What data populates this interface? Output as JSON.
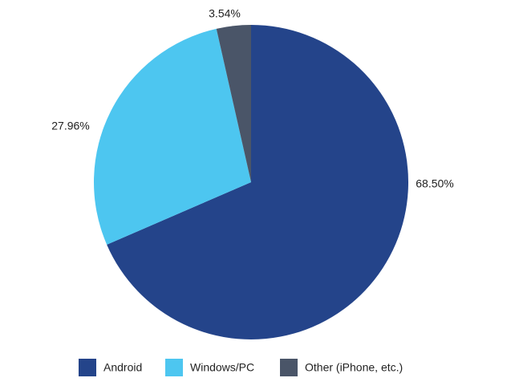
{
  "chart_data": {
    "type": "pie",
    "categories": [
      "Android",
      "Windows/PC",
      "Other (iPhone, etc.)"
    ],
    "values": [
      68.5,
      27.96,
      3.54
    ],
    "value_labels": [
      "68.50%",
      "27.96%",
      "3.54%"
    ],
    "colors": [
      "#24448a",
      "#4dc6f0",
      "#4a5568"
    ],
    "legend": "bottom"
  }
}
